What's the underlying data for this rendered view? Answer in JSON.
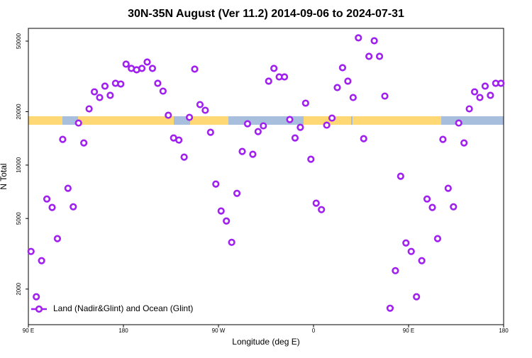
{
  "chart_data": {
    "type": "scatter",
    "title": "30N-35N August (Ver 11.2)   2014-09-06 to 2024-07-31",
    "x_label": "Longitude (deg E)",
    "y_label": "N Total",
    "log_y": true,
    "legend": "bottom-left",
    "xlim": [
      90,
      540
    ],
    "xticks": [
      {
        "value": 90,
        "label": "90 E"
      },
      {
        "value": 180,
        "label": "180"
      },
      {
        "value": 270,
        "label": "90 W"
      },
      {
        "value": 360,
        "label": "0"
      },
      {
        "value": 450,
        "label": "90 E"
      },
      {
        "value": 540,
        "label": "180"
      }
    ],
    "ylim": [
      1260,
      59000
    ],
    "yticks": [
      2000,
      5000,
      10000,
      20000,
      50000
    ],
    "series": [
      {
        "name": "Land (Nadir&Glint) and Ocean (Glint)",
        "color": "#a020f0",
        "x": [
          92.5,
          97.5,
          102.5,
          107.5,
          112.5,
          117.5,
          122.5,
          127.5,
          132.5,
          137.5,
          142.5,
          147.5,
          152.5,
          157.5,
          162.5,
          167.5,
          172.5,
          177.5,
          182.5,
          187.5,
          192.5,
          197.5,
          202.5,
          207.5,
          212.5,
          217.5,
          222.5,
          227.5,
          232.5,
          237.5,
          242.5,
          247.5,
          252.5,
          257.5,
          262.5,
          267.5,
          272.5,
          277.5,
          282.5,
          287.5,
          292.5,
          297.5,
          302.5,
          307.5,
          312.5,
          317.5,
          322.5,
          327.5,
          332.5,
          337.5,
          342.5,
          347.5,
          352.5,
          357.5,
          362.5,
          367.5,
          372.5,
          377.5,
          382.5,
          387.5,
          392.5,
          397.5,
          402.5,
          407.5,
          412.5,
          417.5,
          422.5,
          427.5,
          432.5,
          437.5,
          442.5,
          447.5,
          452.5,
          457.5,
          462.5,
          467.5,
          472.5,
          477.5,
          482.5,
          487.5,
          492.5,
          497.5,
          502.5,
          507.5,
          512.5,
          517.5,
          522.5,
          527.5,
          532.5,
          537.5
        ],
        "values": [
          3260,
          1810,
          2890,
          6440,
          5770,
          3850,
          13960,
          7400,
          5820,
          17260,
          13330,
          20750,
          25880,
          24040,
          27870,
          24720,
          28910,
          28640,
          37070,
          35070,
          34430,
          35070,
          38110,
          35070,
          28910,
          26120,
          19100,
          14220,
          13840,
          11090,
          18580,
          34760,
          21930,
          20370,
          15310,
          7820,
          5510,
          4840,
          3670,
          6930,
          11940,
          17100,
          11510,
          15450,
          16640,
          29720,
          35070,
          31420,
          31420,
          18070,
          14220,
          16330,
          22340,
          10790,
          6100,
          5610,
          16790,
          18410,
          27360,
          35400,
          29720,
          24040,
          52180,
          14090,
          41020,
          50240,
          41020,
          24490,
          1560,
          2540,
          8650,
          3640,
          3260,
          1810,
          2890,
          6440,
          5770,
          3850,
          13960,
          7400,
          5820,
          17260,
          13330,
          20750,
          25880,
          24040,
          27870,
          24720,
          28910,
          28910
        ]
      }
    ]
  }
}
